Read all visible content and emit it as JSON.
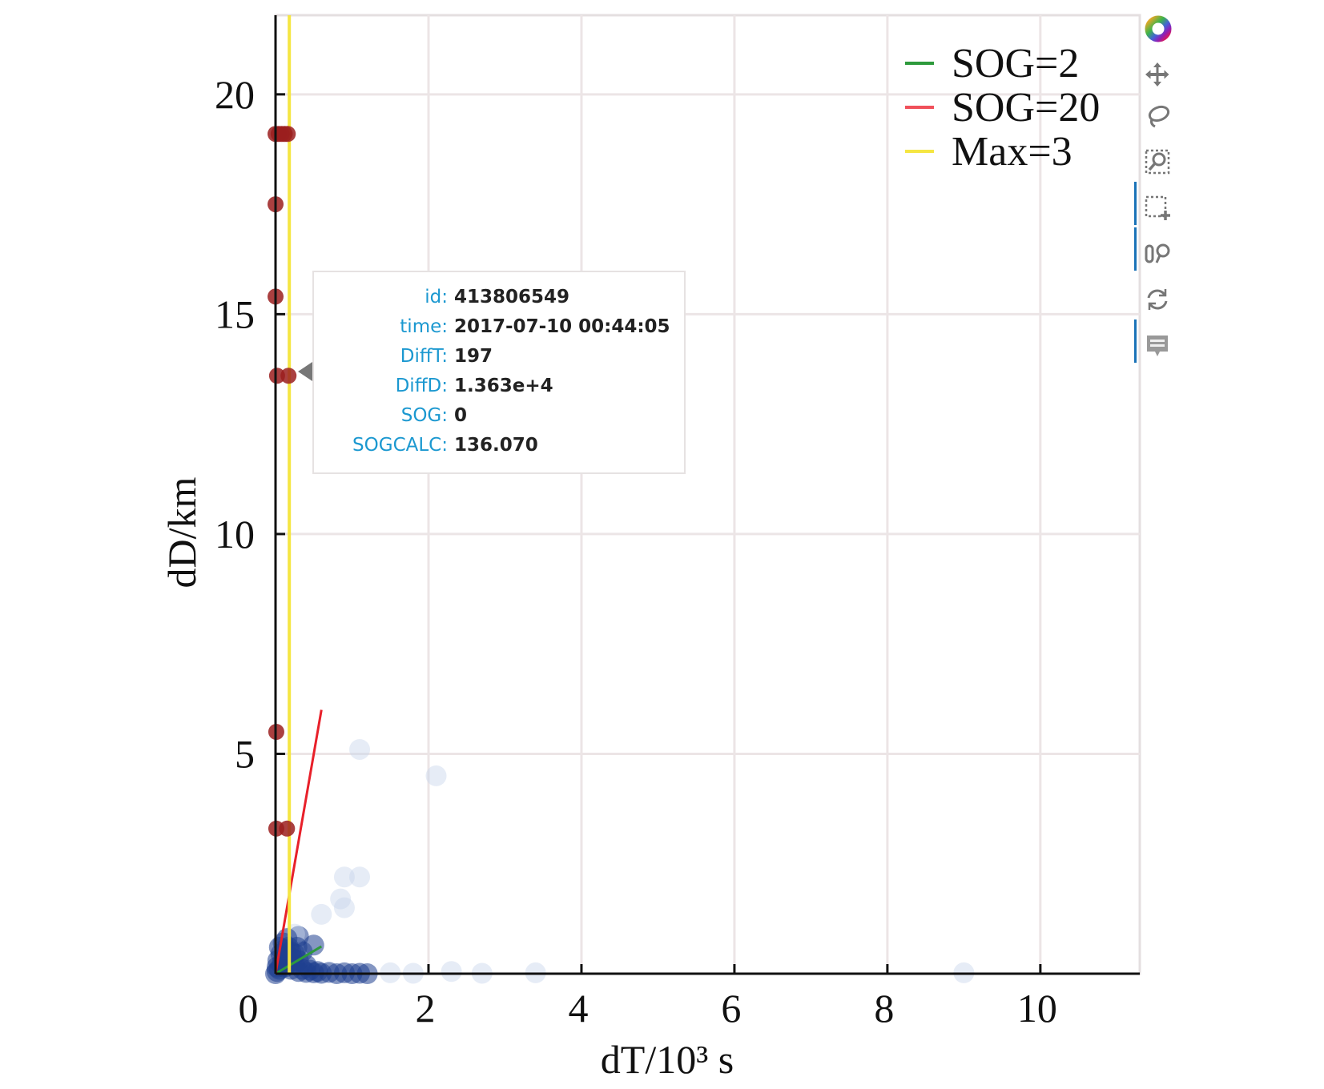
{
  "chart_data": {
    "type": "scatter",
    "xlabel": "dT/10³ s",
    "ylabel": "dD/km",
    "xlim": [
      0,
      11.3
    ],
    "ylim": [
      0,
      21.8
    ],
    "xticks": [
      0,
      2,
      4,
      6,
      8,
      10
    ],
    "yticks": [
      5,
      10,
      15,
      20
    ],
    "x_origin_label": "0",
    "grid": true,
    "legend_position": "top-right",
    "legend": [
      {
        "label": "SOG=2",
        "color": "#2e9a3c"
      },
      {
        "label": "SOG=20",
        "color": "#f0505a"
      },
      {
        "label": "Max=3",
        "color": "#f5e642"
      }
    ],
    "lines": [
      {
        "name": "SOG=2",
        "color": "#2e9a3c",
        "type": "segment",
        "x": [
          0,
          0.6
        ],
        "y": [
          0,
          0.62
        ]
      },
      {
        "name": "SOG=20",
        "color": "#e8202a",
        "type": "segment",
        "x": [
          0,
          0.6
        ],
        "y": [
          0,
          6.0
        ]
      },
      {
        "name": "Max=3",
        "color": "#f5e642",
        "type": "vertical",
        "x": 0.18
      }
    ],
    "outliers": {
      "color": "#9b1f1f",
      "points": [
        [
          0.0,
          19.1
        ],
        [
          0.04,
          19.1
        ],
        [
          0.08,
          19.1
        ],
        [
          0.12,
          19.1
        ],
        [
          0.16,
          19.1
        ],
        [
          0.0,
          17.5
        ],
        [
          0.0,
          15.4
        ],
        [
          0.02,
          13.6
        ],
        [
          0.17,
          13.6
        ],
        [
          0.01,
          5.5
        ],
        [
          0.01,
          3.3
        ],
        [
          0.15,
          3.3
        ]
      ]
    },
    "points": {
      "color": "#1f3f8f",
      "points": [
        [
          1.1,
          5.1
        ],
        [
          2.1,
          4.5
        ],
        [
          0.9,
          2.2
        ],
        [
          1.1,
          2.2
        ],
        [
          0.85,
          1.7
        ],
        [
          0.9,
          1.5
        ],
        [
          0.6,
          1.35
        ],
        [
          0.3,
          0.85
        ],
        [
          0.5,
          0.65
        ],
        [
          0.35,
          0.5
        ],
        [
          0.25,
          0.9
        ],
        [
          3.4,
          0.02
        ],
        [
          9.0,
          0.02
        ],
        [
          2.3,
          0.05
        ],
        [
          2.7,
          0.01
        ],
        [
          1.5,
          0.02
        ],
        [
          1.8,
          0.01
        ],
        [
          0.0,
          0.0
        ],
        [
          0.02,
          0.05
        ],
        [
          0.05,
          0.1
        ],
        [
          0.08,
          0.2
        ],
        [
          0.1,
          0.3
        ],
        [
          0.12,
          0.15
        ],
        [
          0.15,
          0.4
        ],
        [
          0.18,
          0.25
        ],
        [
          0.2,
          0.5
        ],
        [
          0.22,
          0.35
        ],
        [
          0.05,
          0.6
        ],
        [
          0.1,
          0.7
        ],
        [
          0.15,
          0.8
        ],
        [
          0.2,
          0.1
        ],
        [
          0.25,
          0.2
        ],
        [
          0.3,
          0.05
        ],
        [
          0.35,
          0.1
        ],
        [
          0.4,
          0.03
        ],
        [
          0.45,
          0.08
        ],
        [
          0.5,
          0.02
        ],
        [
          0.55,
          0.05
        ],
        [
          0.6,
          0.01
        ],
        [
          0.7,
          0.03
        ],
        [
          0.8,
          0.0
        ],
        [
          0.9,
          0.02
        ],
        [
          1.0,
          0.0
        ],
        [
          1.1,
          0.01
        ],
        [
          1.2,
          0.0
        ],
        [
          0.03,
          0.3
        ],
        [
          0.07,
          0.45
        ],
        [
          0.12,
          0.55
        ],
        [
          0.17,
          0.6
        ],
        [
          0.25,
          0.45
        ],
        [
          0.3,
          0.3
        ],
        [
          0.02,
          0.15
        ],
        [
          0.28,
          0.6
        ],
        [
          0.4,
          0.2
        ]
      ]
    }
  },
  "tooltip": {
    "rows": [
      {
        "label": "id:",
        "value": "413806549"
      },
      {
        "label": "time:",
        "value": "2017-07-10 00:44:05"
      },
      {
        "label": "DiffT:",
        "value": "197"
      },
      {
        "label": "DiffD:",
        "value": "1.363e+4"
      },
      {
        "label": "SOG:",
        "value": "0"
      },
      {
        "label": "SOGCALC:",
        "value": "136.070"
      }
    ]
  },
  "toolbar": {
    "tools": [
      "bokeh-logo-icon",
      "pan-icon",
      "lasso-select-icon",
      "box-zoom-icon",
      "box-select-icon",
      "wheel-zoom-icon",
      "reset-icon",
      "hover-icon"
    ],
    "active": [
      "box-select-icon",
      "wheel-zoom-icon",
      "hover-icon"
    ]
  }
}
